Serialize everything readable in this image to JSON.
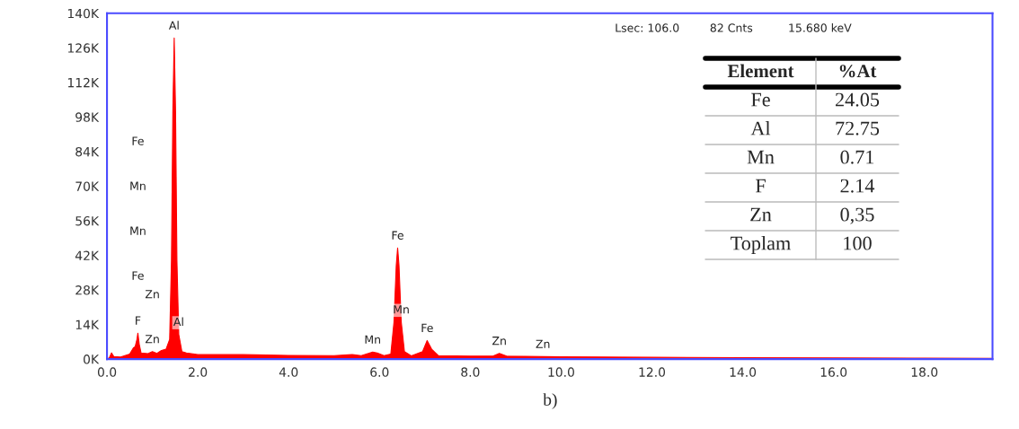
{
  "chart_data": {
    "type": "area",
    "x": [
      0.0,
      0.05,
      0.1,
      0.15,
      0.3,
      0.5,
      0.58,
      0.62,
      0.66,
      0.68,
      0.71,
      0.75,
      0.9,
      1.0,
      1.1,
      1.2,
      1.3,
      1.38,
      1.42,
      1.45,
      1.48,
      1.51,
      1.54,
      1.58,
      1.65,
      1.75,
      2.0,
      3.0,
      4.0,
      5.0,
      5.4,
      5.6,
      5.85,
      5.95,
      6.1,
      6.25,
      6.32,
      6.37,
      6.4,
      6.43,
      6.48,
      6.55,
      6.7,
      6.95,
      7.05,
      7.15,
      7.3,
      8.0,
      8.5,
      8.64,
      8.8,
      9.6,
      10.0,
      12.0,
      14.0,
      16.0,
      18.0,
      19.5
    ],
    "series": [
      {
        "color": "#ff0000",
        "values": [
          0,
          500,
          2500,
          1000,
          800,
          2000,
          4500,
          5000,
          8000,
          10500,
          6000,
          2500,
          2200,
          3000,
          2300,
          3500,
          4000,
          8000,
          40000,
          100000,
          130000,
          100000,
          40000,
          10000,
          3000,
          2500,
          1800,
          1800,
          1500,
          1400,
          1800,
          1400,
          2800,
          2500,
          1400,
          2000,
          15000,
          38000,
          45000,
          38000,
          15000,
          3000,
          1300,
          3000,
          7500,
          4000,
          1300,
          1200,
          1200,
          2300,
          1200,
          1000,
          900,
          700,
          600,
          500,
          400,
          300
        ]
      }
    ],
    "xlim": [
      0,
      19.5
    ],
    "xticks": [
      {
        "value": 0,
        "label": "0.0"
      },
      {
        "value": 2,
        "label": "2.0"
      },
      {
        "value": 4,
        "label": "4.0"
      },
      {
        "value": 6,
        "label": "6.0"
      },
      {
        "value": 8,
        "label": "8.0"
      },
      {
        "value": 10,
        "label": "10.0"
      },
      {
        "value": 12,
        "label": "12.0"
      },
      {
        "value": 14,
        "label": "14.0"
      },
      {
        "value": 16,
        "label": "16.0"
      },
      {
        "value": 18,
        "label": "18.0"
      }
    ],
    "ylim": [
      0,
      140000
    ],
    "yticks": [
      {
        "value": 0,
        "label": "0K"
      },
      {
        "value": 14000,
        "label": "14K"
      },
      {
        "value": 28000,
        "label": "28K"
      },
      {
        "value": 42000,
        "label": "42K"
      },
      {
        "value": 56000,
        "label": "56K"
      },
      {
        "value": 70000,
        "label": "70K"
      },
      {
        "value": 84000,
        "label": "84K"
      },
      {
        "value": 98000,
        "label": "98K"
      },
      {
        "value": 112000,
        "label": "112K"
      },
      {
        "value": 126000,
        "label": "126K"
      },
      {
        "value": 140000,
        "label": "140K"
      }
    ],
    "grid": false,
    "annotations": [
      "Lsec: 106.0",
      "82 Cnts",
      "15.680 keV",
      "Element",
      "%At",
      "Fe",
      "24.05",
      "Al",
      "72.75",
      "Mn",
      "0.71",
      "F",
      "2.14",
      "Zn",
      "0,35",
      "Toplam",
      "100",
      "b)",
      {
        "text": "Al",
        "x": 1.48,
        "y": 130000
      },
      {
        "text": "F",
        "x": 0.68,
        "y": 10500
      },
      "Fe",
      "Mn",
      "Mn",
      "Fe",
      {
        "text": "Zn",
        "x": 1.0,
        "y": 3000
      },
      "Zn",
      {
        "text": "Al",
        "x": 1.58,
        "y": 10000
      },
      {
        "text": "Fe",
        "x": 6.4,
        "y": 45000
      },
      {
        "text": "Mn",
        "x": 6.48,
        "y": 15000
      },
      {
        "text": "Mn",
        "x": 5.85,
        "y": 2800
      },
      {
        "text": "Fe",
        "x": 7.05,
        "y": 7500
      },
      {
        "text": "Zn",
        "x": 8.64,
        "y": 2300
      },
      {
        "text": "Zn",
        "x": 9.6,
        "y": 1000
      }
    ]
  }
}
